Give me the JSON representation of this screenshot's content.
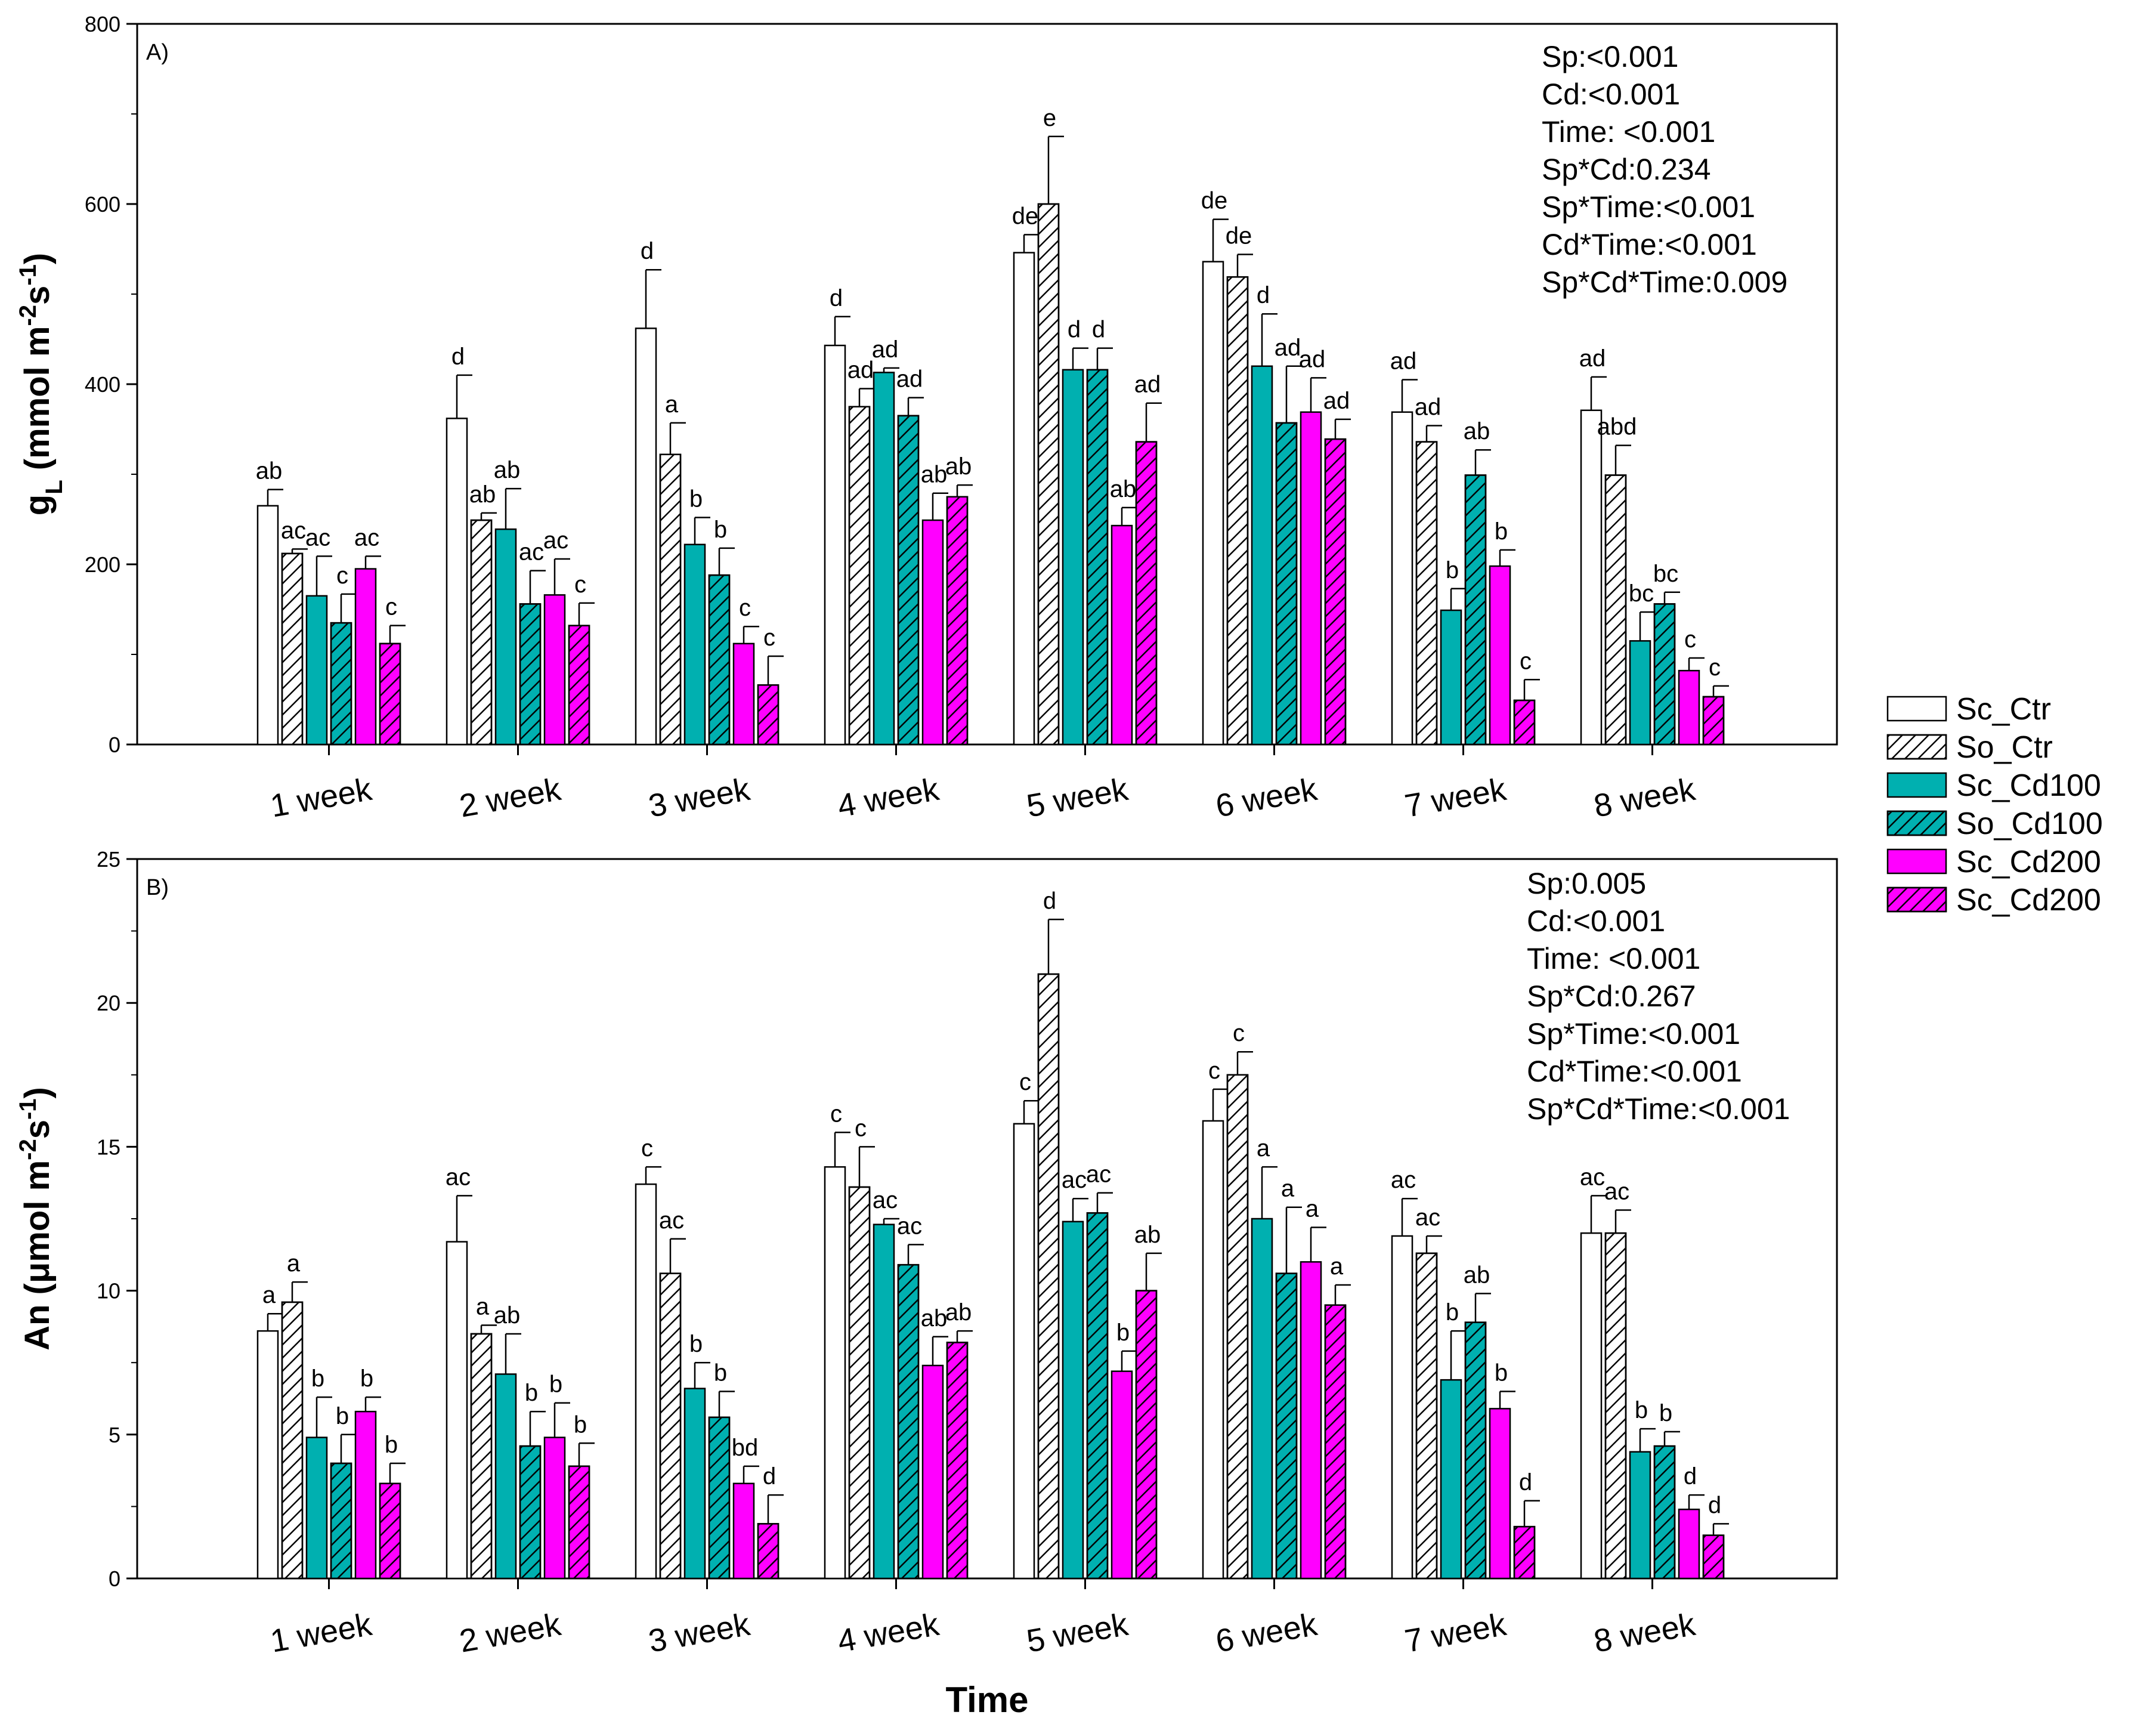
{
  "colors": {
    "ctr": "#ffffff",
    "cd100": "#00b0b0",
    "cd200": "#ff00ff",
    "edge": "#000000"
  },
  "x_title": "Time",
  "legend": [
    {
      "label": "Sc_Ctr",
      "fill": "ctr",
      "hatch": false
    },
    {
      "label": "So_Ctr",
      "fill": "ctr",
      "hatch": true
    },
    {
      "label": "Sc_Cd100",
      "fill": "cd100",
      "hatch": false
    },
    {
      "label": "So_Cd100",
      "fill": "cd100",
      "hatch": true
    },
    {
      "label": "Sc_Cd200",
      "fill": "cd200",
      "hatch": false
    },
    {
      "label": "Sc_Cd200",
      "fill": "cd200",
      "hatch": true
    }
  ],
  "chart_data": [
    {
      "type": "bar",
      "panel_label": "A)",
      "ylabel_main": "g",
      "ylabel_sub": "L",
      "ylabel_rest": " (mmol m",
      "ylabel_sup1": "-2",
      "ylabel_mid": "s",
      "ylabel_sup2": "-1",
      "ylabel_end": ")",
      "ylim": [
        0,
        800
      ],
      "yticks": [
        "0",
        "200",
        "400",
        "600",
        "800"
      ],
      "categories": [
        "1 week",
        "2 week",
        "3 week",
        "4 week",
        "5 week",
        "6 week",
        "7 week",
        "8 week"
      ],
      "series": [
        {
          "name": "Sc_Ctr",
          "values": [
            265,
            362,
            462,
            443,
            546,
            536,
            369,
            371
          ],
          "errors": [
            18,
            48,
            65,
            32,
            20,
            47,
            36,
            37
          ],
          "labels": [
            "ab",
            "d",
            "d",
            "d",
            "de",
            "de",
            "ad",
            "ad"
          ]
        },
        {
          "name": "So_Ctr",
          "values": [
            212,
            249,
            322,
            375,
            600,
            519,
            336,
            299
          ],
          "errors": [
            5,
            8,
            35,
            20,
            75,
            25,
            18,
            33
          ],
          "labels": [
            "ac",
            "ab",
            "a",
            "ad",
            "e",
            "de",
            "ad",
            "abd"
          ]
        },
        {
          "name": "Sc_Cd100",
          "values": [
            165,
            239,
            222,
            413,
            416,
            420,
            149,
            115
          ],
          "errors": [
            44,
            45,
            30,
            5,
            24,
            58,
            24,
            32
          ],
          "labels": [
            "ac",
            "ab",
            "b",
            "ad",
            "d",
            "d",
            "b",
            "bc"
          ]
        },
        {
          "name": "So_Cd100",
          "values": [
            135,
            156,
            188,
            365,
            416,
            357,
            299,
            156
          ],
          "errors": [
            32,
            37,
            30,
            20,
            24,
            63,
            28,
            13
          ],
          "labels": [
            "c",
            "ac",
            "b",
            "ad",
            "d",
            "ad",
            "ab",
            "bc"
          ]
        },
        {
          "name": "Sc_Cd200",
          "values": [
            195,
            166,
            112,
            249,
            243,
            369,
            198,
            82
          ],
          "errors": [
            14,
            40,
            19,
            30,
            20,
            38,
            18,
            14
          ],
          "labels": [
            "ac",
            "ac",
            "c",
            "ab",
            "ab",
            "ad",
            "b",
            "c"
          ]
        },
        {
          "name": "Sc_Cd200",
          "values": [
            112,
            132,
            66,
            275,
            336,
            339,
            49,
            53
          ],
          "errors": [
            20,
            25,
            32,
            13,
            43,
            22,
            23,
            12
          ],
          "labels": [
            "c",
            "c",
            "c",
            "ab",
            "ad",
            "ad",
            "c",
            "c"
          ]
        }
      ],
      "stats": [
        "Sp:<0.001",
        "Cd:<0.001",
        "Time: <0.001",
        "Sp*Cd:0.234",
        "Sp*Time:<0.001",
        "Cd*Time:<0.001",
        "Sp*Cd*Time:0.009"
      ]
    },
    {
      "type": "bar",
      "panel_label": "B)",
      "ylabel_main": "An (",
      "ylabel_sub": "",
      "ylabel_rest": "μmol m",
      "ylabel_sup1": "-2",
      "ylabel_mid": "s",
      "ylabel_sup2": "-1",
      "ylabel_end": ")",
      "ylim": [
        0,
        25
      ],
      "yticks": [
        "0",
        "5",
        "10",
        "15",
        "20",
        "25"
      ],
      "categories": [
        "1 week",
        "2 week",
        "3 week",
        "4 week",
        "5 week",
        "6 week",
        "7 week",
        "8 week"
      ],
      "series": [
        {
          "name": "Sc_Ctr",
          "values": [
            8.6,
            11.7,
            13.7,
            14.3,
            15.8,
            15.9,
            11.9,
            12.0
          ],
          "errors": [
            0.6,
            1.6,
            0.6,
            1.2,
            0.8,
            1.1,
            1.3,
            1.3
          ],
          "labels": [
            "a",
            "ac",
            "c",
            "c",
            "c",
            "c",
            "ac",
            "ac"
          ]
        },
        {
          "name": "So_Ctr",
          "values": [
            9.6,
            8.5,
            10.6,
            13.6,
            21.0,
            17.5,
            11.3,
            12.0
          ],
          "errors": [
            0.7,
            0.3,
            1.2,
            1.4,
            1.9,
            0.8,
            0.6,
            0.8
          ],
          "labels": [
            "a",
            "a",
            "ac",
            "c",
            "d",
            "c",
            "ac",
            "ac"
          ]
        },
        {
          "name": "Sc_Cd100",
          "values": [
            4.9,
            7.1,
            6.6,
            12.3,
            12.4,
            12.5,
            6.9,
            4.4
          ],
          "errors": [
            1.4,
            1.4,
            0.9,
            0.2,
            0.8,
            1.8,
            1.7,
            0.8
          ],
          "labels": [
            "b",
            "ab",
            "b",
            "ac",
            "ac",
            "a",
            "b",
            "b"
          ]
        },
        {
          "name": "So_Cd100",
          "values": [
            4.0,
            4.6,
            5.6,
            10.9,
            12.7,
            10.6,
            8.9,
            4.6
          ],
          "errors": [
            1.0,
            1.2,
            0.9,
            0.7,
            0.7,
            2.3,
            1.0,
            0.5
          ],
          "labels": [
            "b",
            "b",
            "b",
            "ac",
            "ac",
            "a",
            "ab",
            "b"
          ]
        },
        {
          "name": "Sc_Cd200",
          "values": [
            5.8,
            4.9,
            3.3,
            7.4,
            7.2,
            11.0,
            5.9,
            2.4
          ],
          "errors": [
            0.5,
            1.2,
            0.6,
            1.0,
            0.7,
            1.2,
            0.6,
            0.5
          ],
          "labels": [
            "b",
            "b",
            "bd",
            "ab",
            "b",
            "a",
            "b",
            "d"
          ]
        },
        {
          "name": "Sc_Cd200",
          "values": [
            3.3,
            3.9,
            1.9,
            8.2,
            10.0,
            9.5,
            1.8,
            1.5
          ],
          "errors": [
            0.7,
            0.8,
            1.0,
            0.4,
            1.3,
            0.7,
            0.9,
            0.4
          ],
          "labels": [
            "b",
            "b",
            "d",
            "ab",
            "ab",
            "a",
            "d",
            "d"
          ]
        }
      ],
      "stats": [
        "Sp:0.005",
        "Cd:<0.001",
        "Time: <0.001",
        "Sp*Cd:0.267",
        "Sp*Time:<0.001",
        "Cd*Time:<0.001",
        "Sp*Cd*Time:<0.001"
      ]
    }
  ]
}
